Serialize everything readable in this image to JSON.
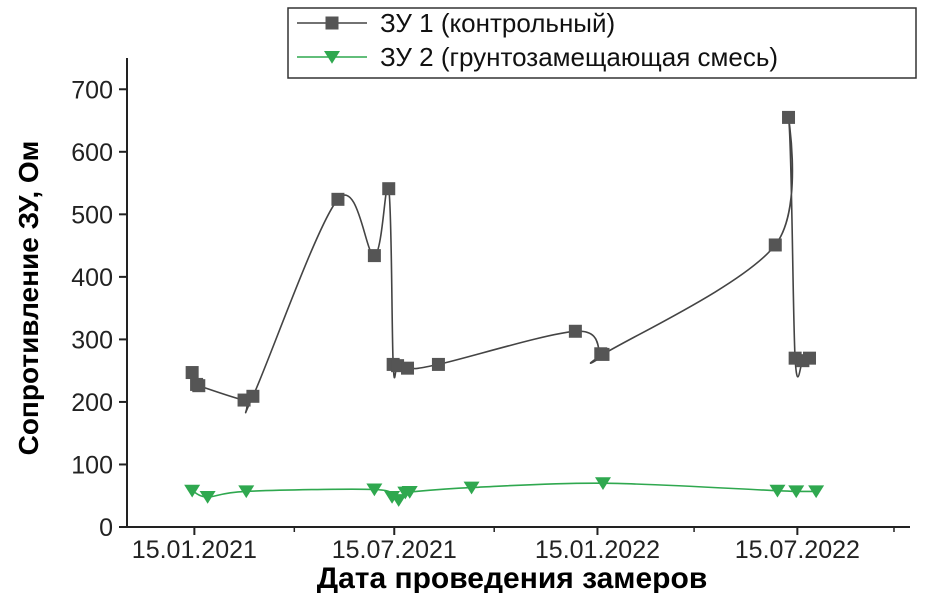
{
  "chart_data": {
    "type": "line",
    "xlabel": "Дата проведения замеров",
    "ylabel": "Сопротивление ЗУ, Ом",
    "ylim": [
      0,
      750
    ],
    "xlim": [
      "2020-11-15",
      "2022-10-25"
    ],
    "x_ticks": [
      "15.01.2021",
      "15.07.2021",
      "15.01.2022",
      "15.07.2022"
    ],
    "y_ticks": [
      0,
      100,
      200,
      300,
      400,
      500,
      600,
      700
    ],
    "grid": false,
    "legend_position": "top-right",
    "series": [
      {
        "name": "ЗУ 1 (контрольный)",
        "color": "#555555",
        "marker": "square",
        "x": [
          "2021-01-13",
          "2021-01-17",
          "2021-01-19",
          "2021-03-01",
          "2021-03-09",
          "2021-05-25",
          "2021-06-27",
          "2021-07-10",
          "2021-07-14",
          "2021-07-18",
          "2021-07-27",
          "2021-08-24",
          "2021-12-26",
          "2022-01-18",
          "2022-01-20",
          "2022-06-25",
          "2022-07-07",
          "2022-07-13",
          "2022-07-20",
          "2022-07-26"
        ],
        "values": [
          247,
          228,
          226,
          203,
          209,
          524,
          434,
          541,
          260,
          258,
          254,
          260,
          313,
          277,
          276,
          451,
          655,
          270,
          266,
          270
        ]
      },
      {
        "name": "ЗУ 2 (грунтозамещающая смесь)",
        "color": "#2fa84f",
        "marker": "triangle-down",
        "x": [
          "2021-01-13",
          "2021-01-27",
          "2021-03-03",
          "2021-06-27",
          "2021-07-13",
          "2021-07-19",
          "2021-07-25",
          "2021-07-29",
          "2021-09-23",
          "2022-01-20",
          "2022-06-27",
          "2022-07-14",
          "2022-08-01"
        ],
        "values": [
          58,
          48,
          57,
          60,
          48,
          43,
          55,
          56,
          63,
          70,
          58,
          57,
          57
        ]
      }
    ]
  }
}
